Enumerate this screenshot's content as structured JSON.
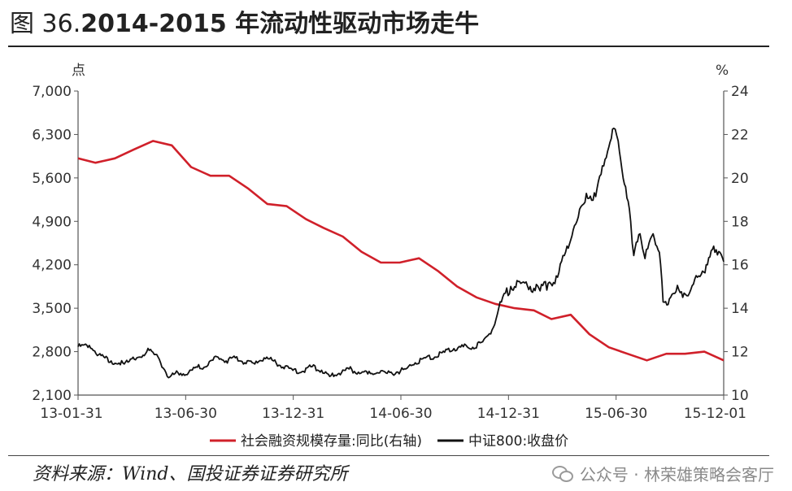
{
  "title": {
    "prefix": "图 36.",
    "main": "2014-2015 年流动性驱动市场走牛"
  },
  "source": "资料来源：Wind、国投证券证券研究所",
  "watermark": "公众号 · 林荣雄策略会客厅",
  "chart_data": {
    "type": "line",
    "left_unit": "点",
    "right_unit": "%",
    "x_ticks": [
      "13-01-31",
      "13-06-30",
      "13-12-31",
      "14-06-30",
      "14-12-31",
      "15-06-30",
      "15-12-01"
    ],
    "x_range": [
      "2013-01-31",
      "2015-12-01"
    ],
    "ylim_left": [
      2100,
      7000
    ],
    "yticks_left": [
      "2,100",
      "2,800",
      "3,500",
      "4,200",
      "4,900",
      "5,600",
      "6,300",
      "7,000"
    ],
    "ylim_right": [
      10,
      24
    ],
    "yticks_right": [
      "10",
      "12",
      "14",
      "16",
      "18",
      "20",
      "22",
      "24"
    ],
    "grid": false,
    "legend_position": "bottom",
    "colors": {
      "red_series": "#d0202a",
      "black_series": "#111111"
    },
    "series": [
      {
        "name": "社会融资规模存量:同比(右轴)",
        "axis": "right",
        "color": "#d0202a",
        "points": [
          [
            "2013-01-31",
            20.9
          ],
          [
            "2013-02-28",
            20.7
          ],
          [
            "2013-03-31",
            20.9
          ],
          [
            "2013-04-30",
            21.3
          ],
          [
            "2013-05-31",
            21.7
          ],
          [
            "2013-06-30",
            21.5
          ],
          [
            "2013-07-31",
            20.5
          ],
          [
            "2013-08-31",
            20.1
          ],
          [
            "2013-09-30",
            20.1
          ],
          [
            "2013-10-31",
            19.5
          ],
          [
            "2013-11-30",
            18.8
          ],
          [
            "2013-12-31",
            18.7
          ],
          [
            "2014-01-31",
            18.1
          ],
          [
            "2014-02-28",
            17.7
          ],
          [
            "2014-03-31",
            17.3
          ],
          [
            "2014-04-30",
            16.6
          ],
          [
            "2014-05-31",
            16.1
          ],
          [
            "2014-06-30",
            16.1
          ],
          [
            "2014-07-31",
            16.3
          ],
          [
            "2014-08-31",
            15.7
          ],
          [
            "2014-09-30",
            15.0
          ],
          [
            "2014-10-31",
            14.5
          ],
          [
            "2014-11-30",
            14.2
          ],
          [
            "2014-12-31",
            14.0
          ],
          [
            "2015-01-31",
            13.9
          ],
          [
            "2015-02-28",
            13.5
          ],
          [
            "2015-03-31",
            13.7
          ],
          [
            "2015-04-30",
            12.8
          ],
          [
            "2015-05-31",
            12.2
          ],
          [
            "2015-06-30",
            11.9
          ],
          [
            "2015-07-31",
            11.6
          ],
          [
            "2015-08-31",
            11.9
          ],
          [
            "2015-09-30",
            11.9
          ],
          [
            "2015-10-31",
            12.0
          ],
          [
            "2015-12-01",
            11.6
          ]
        ]
      },
      {
        "name": "中证800:收盘价",
        "axis": "left",
        "color": "#111111",
        "points": [
          [
            "2013-01-31",
            2880
          ],
          [
            "2013-02-18",
            2900
          ],
          [
            "2013-03-05",
            2750
          ],
          [
            "2013-03-25",
            2650
          ],
          [
            "2013-04-15",
            2600
          ],
          [
            "2013-05-05",
            2700
          ],
          [
            "2013-05-25",
            2820
          ],
          [
            "2013-06-10",
            2680
          ],
          [
            "2013-06-25",
            2380
          ],
          [
            "2013-07-10",
            2460
          ],
          [
            "2013-07-25",
            2430
          ],
          [
            "2013-08-10",
            2550
          ],
          [
            "2013-08-25",
            2560
          ],
          [
            "2013-09-10",
            2720
          ],
          [
            "2013-09-25",
            2650
          ],
          [
            "2013-10-10",
            2700
          ],
          [
            "2013-10-25",
            2620
          ],
          [
            "2013-11-10",
            2600
          ],
          [
            "2013-11-25",
            2700
          ],
          [
            "2013-12-10",
            2650
          ],
          [
            "2013-12-25",
            2550
          ],
          [
            "2014-01-10",
            2500
          ],
          [
            "2014-01-25",
            2480
          ],
          [
            "2014-02-10",
            2560
          ],
          [
            "2014-02-25",
            2500
          ],
          [
            "2014-03-10",
            2400
          ],
          [
            "2014-03-25",
            2450
          ],
          [
            "2014-04-10",
            2520
          ],
          [
            "2014-04-25",
            2470
          ],
          [
            "2014-05-10",
            2440
          ],
          [
            "2014-05-25",
            2460
          ],
          [
            "2014-06-10",
            2450
          ],
          [
            "2014-06-25",
            2470
          ],
          [
            "2014-07-10",
            2520
          ],
          [
            "2014-07-25",
            2620
          ],
          [
            "2014-08-10",
            2700
          ],
          [
            "2014-08-25",
            2710
          ],
          [
            "2014-09-10",
            2790
          ],
          [
            "2014-09-25",
            2850
          ],
          [
            "2014-10-10",
            2880
          ],
          [
            "2014-10-25",
            2870
          ],
          [
            "2014-11-10",
            2960
          ],
          [
            "2014-11-25",
            3150
          ],
          [
            "2014-12-10",
            3600
          ],
          [
            "2014-12-25",
            3850
          ],
          [
            "2015-01-10",
            3900
          ],
          [
            "2015-01-25",
            3850
          ],
          [
            "2015-02-10",
            3780
          ],
          [
            "2015-02-25",
            3920
          ],
          [
            "2015-03-10",
            4000
          ],
          [
            "2015-03-25",
            4500
          ],
          [
            "2015-04-10",
            4900
          ],
          [
            "2015-04-25",
            5350
          ],
          [
            "2015-05-10",
            5300
          ],
          [
            "2015-05-25",
            5900
          ],
          [
            "2015-06-08",
            6400
          ],
          [
            "2015-06-15",
            6200
          ],
          [
            "2015-06-25",
            5500
          ],
          [
            "2015-07-05",
            4900
          ],
          [
            "2015-07-10",
            4350
          ],
          [
            "2015-07-20",
            4700
          ],
          [
            "2015-07-28",
            4300
          ],
          [
            "2015-08-10",
            4700
          ],
          [
            "2015-08-20",
            4400
          ],
          [
            "2015-08-26",
            3600
          ],
          [
            "2015-09-05",
            3650
          ],
          [
            "2015-09-20",
            3800
          ],
          [
            "2015-10-05",
            3700
          ],
          [
            "2015-10-20",
            4000
          ],
          [
            "2015-11-05",
            4200
          ],
          [
            "2015-11-15",
            4500
          ],
          [
            "2015-11-25",
            4400
          ],
          [
            "2015-12-01",
            4250
          ]
        ]
      }
    ]
  }
}
